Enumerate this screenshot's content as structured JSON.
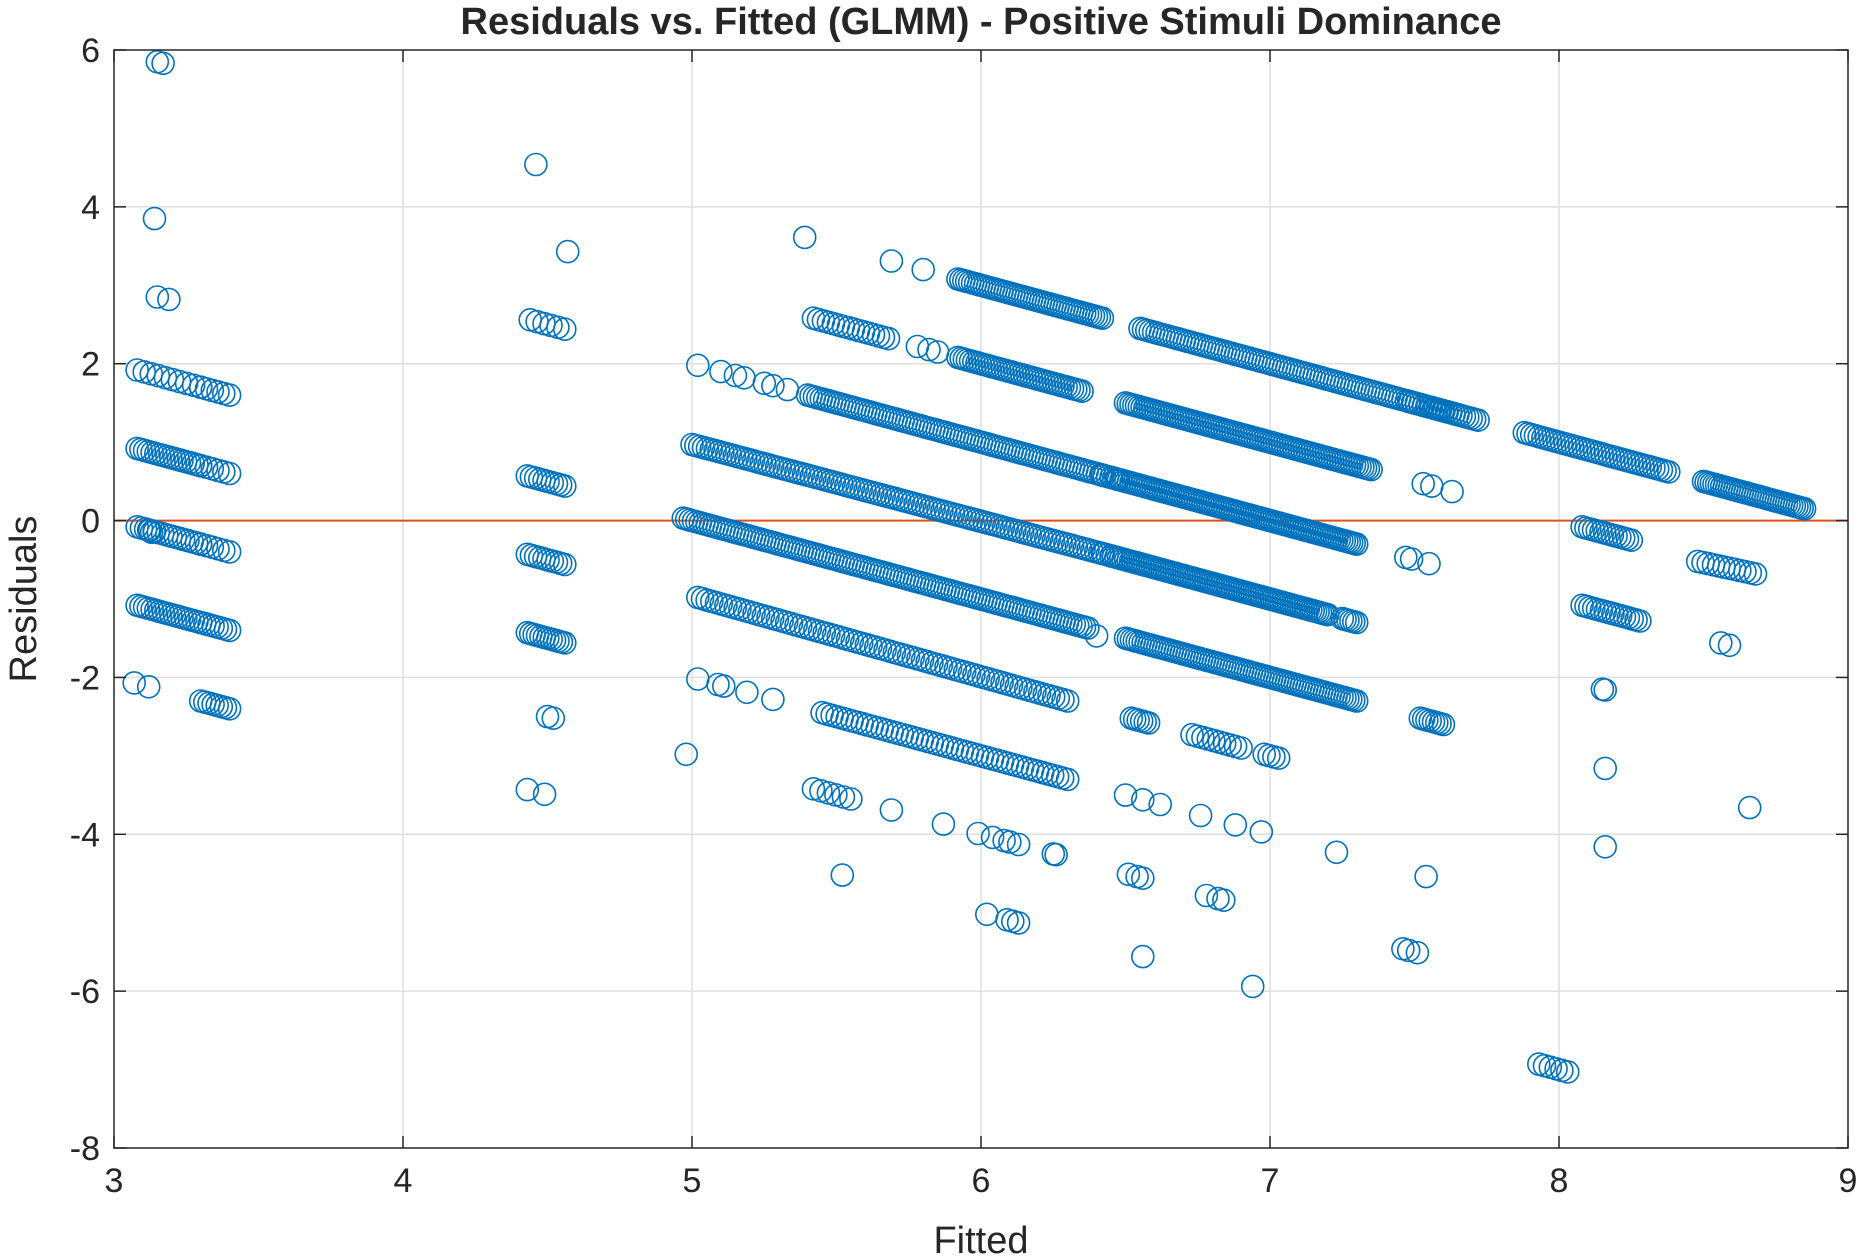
{
  "chart_data": {
    "type": "scatter",
    "title": "Residuals vs. Fitted (GLMM) - Positive Stimuli Dominance",
    "xlabel": "Fitted",
    "ylabel": "Residuals",
    "xlim": [
      3,
      9
    ],
    "ylim": [
      -8,
      6
    ],
    "xticks": [
      3,
      4,
      5,
      6,
      7,
      8,
      9
    ],
    "yticks": [
      -8,
      -6,
      -4,
      -2,
      0,
      2,
      4,
      6
    ],
    "grid": true,
    "marker": "open-circle",
    "colors": {
      "points": "#0072BD",
      "zero_line": "#D95319"
    },
    "reference_line": {
      "y": 0
    },
    "series": [
      {
        "segments": [
          [
            3.08,
            0.92,
            3.3,
            0.7,
            18
          ],
          [
            3.08,
            1.92,
            3.3,
            1.7,
            10
          ],
          [
            3.08,
            -0.08,
            3.3,
            -0.3,
            16
          ],
          [
            3.08,
            -1.08,
            3.3,
            -1.3,
            18
          ],
          [
            3.3,
            -2.3,
            3.4,
            -2.4,
            8
          ],
          [
            3.3,
            1.7,
            3.4,
            1.6,
            6
          ],
          [
            3.3,
            0.7,
            3.4,
            0.6,
            6
          ],
          [
            3.3,
            -0.3,
            3.4,
            -0.4,
            6
          ],
          [
            3.3,
            -1.3,
            3.4,
            -1.4,
            8
          ],
          [
            4.43,
            0.57,
            4.56,
            0.44,
            10
          ],
          [
            4.43,
            -0.43,
            4.56,
            -0.56,
            10
          ],
          [
            4.43,
            -1.43,
            4.56,
            -1.56,
            12
          ],
          [
            4.44,
            2.56,
            4.56,
            2.44,
            6
          ],
          [
            4.97,
            0.03,
            6.37,
            -1.37,
            120
          ],
          [
            5.0,
            0.97,
            6.45,
            -0.45,
            110
          ],
          [
            5.4,
            1.6,
            6.45,
            0.55,
            90
          ],
          [
            5.92,
            2.08,
            6.35,
            1.65,
            40
          ],
          [
            5.92,
            3.08,
            6.42,
            2.58,
            50
          ],
          [
            5.42,
            2.58,
            5.68,
            2.32,
            16
          ],
          [
            5.02,
            -0.98,
            6.3,
            -2.3,
            80
          ],
          [
            5.45,
            -2.45,
            6.3,
            -3.3,
            50
          ],
          [
            5.42,
            -3.42,
            5.55,
            -3.55,
            6
          ],
          [
            6.55,
            2.45,
            7.72,
            1.28,
            100
          ],
          [
            6.5,
            1.5,
            7.35,
            0.65,
            90
          ],
          [
            6.45,
            0.55,
            7.3,
            -0.3,
            100
          ],
          [
            6.45,
            -0.45,
            7.2,
            -1.2,
            90
          ],
          [
            6.5,
            -1.5,
            7.3,
            -2.3,
            80
          ],
          [
            6.52,
            -2.52,
            6.58,
            -2.58,
            6
          ],
          [
            6.73,
            -2.73,
            6.9,
            -2.9,
            10
          ],
          [
            6.98,
            -2.98,
            7.03,
            -3.03,
            4
          ],
          [
            7.25,
            -1.25,
            7.3,
            -1.3,
            6
          ],
          [
            7.48,
            1.52,
            7.65,
            1.35,
            14
          ],
          [
            7.52,
            -2.52,
            7.6,
            -2.6,
            8
          ],
          [
            7.88,
            1.12,
            8.38,
            0.62,
            40
          ],
          [
            8.5,
            0.5,
            8.85,
            0.15,
            40
          ],
          [
            8.08,
            -0.08,
            8.25,
            -0.25,
            14
          ],
          [
            8.08,
            -1.08,
            8.28,
            -1.28,
            16
          ],
          [
            8.48,
            -0.52,
            8.68,
            -0.68,
            12
          ],
          [
            7.93,
            -6.93,
            8.03,
            -7.03,
            6
          ]
        ],
        "points": [
          [
            3.15,
            5.85
          ],
          [
            3.17,
            5.83
          ],
          [
            3.14,
            3.85
          ],
          [
            3.15,
            2.85
          ],
          [
            3.19,
            2.82
          ],
          [
            3.07,
            -2.07
          ],
          [
            3.12,
            -2.12
          ],
          [
            3.12,
            -0.12
          ],
          [
            3.13,
            -0.15
          ],
          [
            3.14,
            -0.14
          ],
          [
            4.46,
            4.54
          ],
          [
            4.57,
            3.43
          ],
          [
            4.5,
            -2.5
          ],
          [
            4.52,
            -2.52
          ],
          [
            4.43,
            -3.43
          ],
          [
            4.49,
            -3.49
          ],
          [
            5.39,
            3.61
          ],
          [
            5.69,
            3.31
          ],
          [
            5.8,
            3.2
          ],
          [
            5.02,
            1.98
          ],
          [
            5.1,
            1.9
          ],
          [
            5.15,
            1.85
          ],
          [
            5.18,
            1.82
          ],
          [
            5.25,
            1.75
          ],
          [
            5.28,
            1.72
          ],
          [
            5.33,
            1.67
          ],
          [
            4.98,
            -2.98
          ],
          [
            5.02,
            -2.02
          ],
          [
            5.09,
            -2.09
          ],
          [
            5.11,
            -2.11
          ],
          [
            5.19,
            -2.19
          ],
          [
            5.28,
            -2.28
          ],
          [
            5.52,
            -4.52
          ],
          [
            5.69,
            -3.69
          ],
          [
            5.87,
            -3.87
          ],
          [
            5.99,
            -3.99
          ],
          [
            6.04,
            -4.04
          ],
          [
            6.08,
            -4.08
          ],
          [
            6.1,
            -4.1
          ],
          [
            6.13,
            -4.13
          ],
          [
            6.02,
            -5.02
          ],
          [
            6.09,
            -5.09
          ],
          [
            6.11,
            -5.11
          ],
          [
            6.13,
            -5.13
          ],
          [
            6.25,
            -4.25
          ],
          [
            6.26,
            -4.26
          ],
          [
            6.5,
            -3.5
          ],
          [
            6.56,
            -3.56
          ],
          [
            6.62,
            -3.62
          ],
          [
            6.76,
            -3.76
          ],
          [
            6.88,
            -3.88
          ],
          [
            6.97,
            -3.97
          ],
          [
            6.51,
            -4.51
          ],
          [
            6.54,
            -4.54
          ],
          [
            6.56,
            -4.56
          ],
          [
            6.78,
            -4.78
          ],
          [
            6.82,
            -4.82
          ],
          [
            6.84,
            -4.84
          ],
          [
            6.56,
            -5.56
          ],
          [
            6.94,
            -5.94
          ],
          [
            7.23,
            -4.23
          ],
          [
            7.46,
            -5.46
          ],
          [
            7.48,
            -5.48
          ],
          [
            7.51,
            -5.51
          ],
          [
            7.54,
            -4.54
          ],
          [
            7.47,
            -0.47
          ],
          [
            7.49,
            -0.49
          ],
          [
            7.55,
            -0.55
          ],
          [
            7.53,
            0.47
          ],
          [
            7.56,
            0.44
          ],
          [
            7.63,
            0.37
          ],
          [
            8.15,
            -2.15
          ],
          [
            8.16,
            -2.16
          ],
          [
            8.16,
            -3.16
          ],
          [
            8.16,
            -4.16
          ],
          [
            8.56,
            -1.56
          ],
          [
            8.59,
            -1.59
          ],
          [
            8.66,
            -3.66
          ],
          [
            6.42,
            0.58
          ],
          [
            6.47,
            0.53
          ],
          [
            6.42,
            -0.42
          ],
          [
            6.4,
            -1.47
          ],
          [
            5.82,
            2.18
          ],
          [
            5.85,
            2.15
          ],
          [
            5.78,
            2.22
          ]
        ]
      }
    ]
  }
}
